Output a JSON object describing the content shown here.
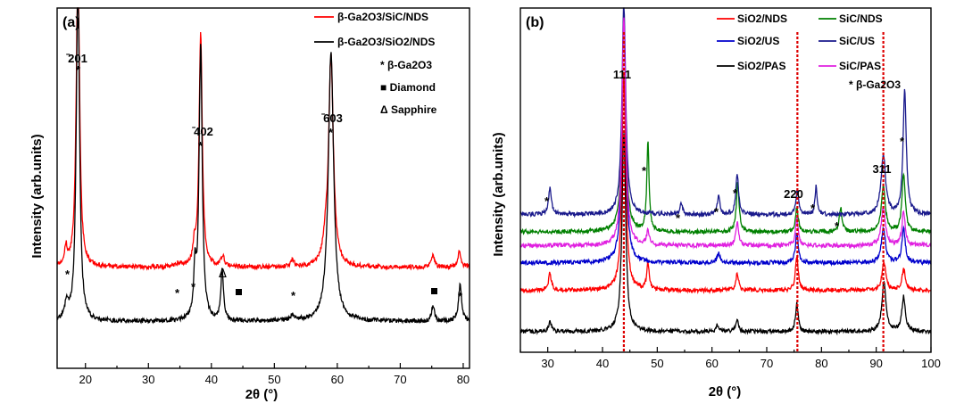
{
  "chart_data": [
    {
      "type": "line",
      "panel_label": "(a)",
      "xlabel": "2θ (°)",
      "ylabel": "Intensity (arb.units)",
      "xlim": [
        15.5,
        81
      ],
      "ylim": [
        0,
        1
      ],
      "xticks": [
        20,
        30,
        40,
        50,
        60,
        70,
        80
      ],
      "grid": false,
      "legend_position": "top-right",
      "series": [
        {
          "name": "β-Ga2O3/SiC/NDS",
          "color": "#ff0000",
          "baseline": 0.28,
          "noise": 0.006,
          "peaks": [
            [
              16.9,
              0.05,
              0.25
            ],
            [
              18.8,
              0.89,
              0.3
            ],
            [
              34.8,
              0.01,
              0.4
            ],
            [
              37.3,
              0.05,
              0.25
            ],
            [
              38.3,
              0.65,
              0.3
            ],
            [
              41.8,
              0.03,
              0.3
            ],
            [
              52.9,
              0.02,
              0.3
            ],
            [
              58.1,
              0.04,
              0.45
            ],
            [
              59.0,
              0.58,
              0.45
            ],
            [
              75.2,
              0.035,
              0.3
            ],
            [
              79.4,
              0.045,
              0.3
            ]
          ]
        },
        {
          "name": "β-Ga2O3/SiO2/NDS",
          "color": "#000000",
          "baseline": 0.13,
          "noise": 0.006,
          "peaks": [
            [
              17.0,
              0.05,
              0.3
            ],
            [
              18.8,
              0.98,
              0.3
            ],
            [
              37.4,
              0.13,
              0.22
            ],
            [
              38.3,
              0.76,
              0.3
            ],
            [
              41.7,
              0.14,
              0.25
            ],
            [
              52.9,
              0.015,
              0.4
            ],
            [
              59.0,
              0.75,
              0.5
            ],
            [
              75.2,
              0.04,
              0.3
            ],
            [
              79.5,
              0.1,
              0.3
            ]
          ]
        }
      ],
      "annotations": [
        {
          "text": "̄201",
          "x": 18.8,
          "y": 0.93
        },
        {
          "text": "̄402",
          "x": 38.3,
          "y": 0.64
        },
        {
          "text": "̄603",
          "x": 59.0,
          "y": 0.72
        }
      ],
      "legend_entries": [
        {
          "text": "β-Ga2O3/SiC/NDS",
          "color": "#ff0000"
        },
        {
          "text": "β-Ga2O3/SiO2/NDS",
          "color": "#000000"
        },
        {
          "text": "* β-Ga2O3"
        },
        {
          "text": "■ Diamond"
        },
        {
          "text": "Δ Sapphire"
        }
      ]
    },
    {
      "type": "line",
      "panel_label": "(b)",
      "xlabel": "2θ (°)",
      "ylabel": "Intensity (arb.units)",
      "xlim": [
        25,
        100
      ],
      "ylim": [
        0,
        1
      ],
      "xticks": [
        30,
        40,
        50,
        60,
        70,
        80,
        90,
        100
      ],
      "grid": false,
      "legend_position": "top-right",
      "series": [
        {
          "name": "SiO2/NDS",
          "color": "#ff0000",
          "baseline": 0.18,
          "noise": 0.006,
          "peaks": [
            [
              30.4,
              0.05,
              0.3
            ],
            [
              43.9,
              0.63,
              0.4
            ],
            [
              48.3,
              0.08,
              0.25
            ],
            [
              64.6,
              0.05,
              0.3
            ],
            [
              75.5,
              0.1,
              0.3
            ],
            [
              91.4,
              0.08,
              0.4
            ],
            [
              95.0,
              0.06,
              0.4
            ]
          ]
        },
        {
          "name": "SiO2/US",
          "color": "#0000cc",
          "baseline": 0.26,
          "noise": 0.006,
          "peaks": [
            [
              43.9,
              0.72,
              0.4
            ],
            [
              61.2,
              0.03,
              0.3
            ],
            [
              75.5,
              0.09,
              0.3
            ],
            [
              91.3,
              0.1,
              0.45
            ],
            [
              95.0,
              0.1,
              0.35
            ]
          ]
        },
        {
          "name": "SiO2/PAS",
          "color": "#000000",
          "baseline": 0.06,
          "noise": 0.006,
          "peaks": [
            [
              30.4,
              0.03,
              0.3
            ],
            [
              43.9,
              0.58,
              0.4
            ],
            [
              61.0,
              0.02,
              0.3
            ],
            [
              64.6,
              0.03,
              0.3
            ],
            [
              75.5,
              0.08,
              0.3
            ],
            [
              91.4,
              0.14,
              0.45
            ],
            [
              95.0,
              0.1,
              0.4
            ]
          ]
        },
        {
          "name": "SiC/NDS",
          "color": "#008000",
          "baseline": 0.35,
          "noise": 0.006,
          "peaks": [
            [
              43.9,
              0.6,
              0.4
            ],
            [
              48.3,
              0.26,
              0.25
            ],
            [
              64.7,
              0.14,
              0.3
            ],
            [
              75.5,
              0.07,
              0.3
            ],
            [
              83.5,
              0.07,
              0.3
            ],
            [
              91.3,
              0.13,
              0.45
            ],
            [
              95.0,
              0.17,
              0.35
            ]
          ]
        },
        {
          "name": "SiC/US",
          "color": "#1a1a8c",
          "baseline": 0.4,
          "noise": 0.006,
          "peaks": [
            [
              30.4,
              0.08,
              0.3
            ],
            [
              43.9,
              0.62,
              0.4
            ],
            [
              54.4,
              0.03,
              0.3
            ],
            [
              61.2,
              0.05,
              0.3
            ],
            [
              64.6,
              0.12,
              0.3
            ],
            [
              75.6,
              0.07,
              0.3
            ],
            [
              79.0,
              0.08,
              0.22
            ],
            [
              91.3,
              0.17,
              0.5
            ],
            [
              95.2,
              0.36,
              0.35
            ]
          ]
        },
        {
          "name": "SiC/PAS",
          "color": "#e020e0",
          "baseline": 0.31,
          "noise": 0.006,
          "peaks": [
            [
              43.9,
              0.66,
              0.4
            ],
            [
              48.3,
              0.04,
              0.3
            ],
            [
              64.6,
              0.07,
              0.3
            ],
            [
              75.5,
              0.08,
              0.3
            ],
            [
              91.3,
              0.11,
              0.45
            ],
            [
              95.0,
              0.1,
              0.35
            ]
          ]
        }
      ],
      "annotations": [
        {
          "text": "111",
          "x": 43.9,
          "y": 0.98
        },
        {
          "text": "220",
          "x": 75.5,
          "y": 0.6
        },
        {
          "text": "311",
          "x": 91.3,
          "y": 0.68
        }
      ],
      "reference_lines": [
        {
          "x": 43.9,
          "color": "#dd0000"
        },
        {
          "x": 75.6,
          "color": "#dd0000"
        },
        {
          "x": 91.3,
          "color": "#dd0000"
        }
      ],
      "legend_entries": [
        {
          "text": "SiO2/NDS",
          "color": "#ff0000"
        },
        {
          "text": "SiC/NDS",
          "color": "#008000"
        },
        {
          "text": "SiO2/US",
          "color": "#0000cc"
        },
        {
          "text": "SiC/US",
          "color": "#1a1a8c"
        },
        {
          "text": "SiO2/PAS",
          "color": "#000000"
        },
        {
          "text": "SiC/PAS",
          "color": "#e020e0"
        },
        {
          "text": "* β-Ga2O3"
        }
      ]
    }
  ]
}
